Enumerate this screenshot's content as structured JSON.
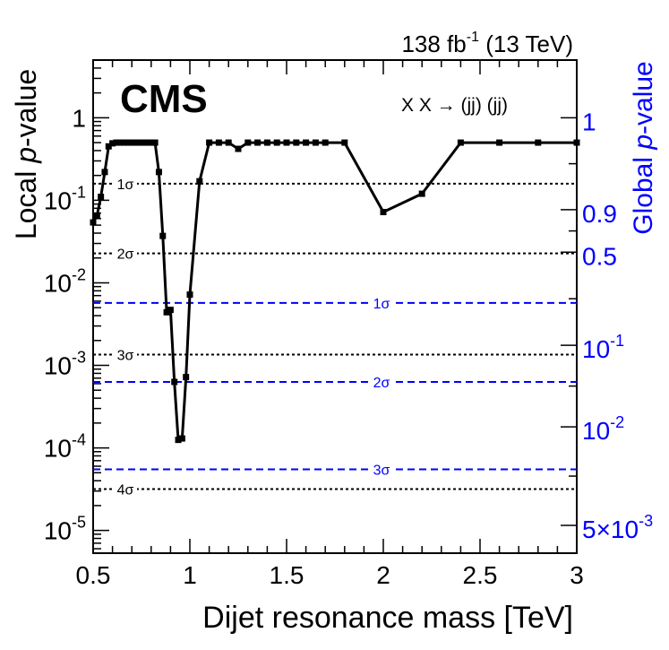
{
  "chart_data": {
    "type": "line",
    "title": "",
    "lumi_label": {
      "value": "138 fb",
      "sup": "-1",
      "energy": " (13 TeV)"
    },
    "experiment": "CMS",
    "process": "X X → (jj) (jj)",
    "xlabel": "Dijet resonance mass [TeV]",
    "ylabel": {
      "plain": "Local ",
      "italic": "p",
      "rest": "-value"
    },
    "ylabel_right": {
      "plain": "Global ",
      "italic": "p",
      "rest": "-value"
    },
    "xlim": [
      0.5,
      3.0
    ],
    "ylim": [
      5.3e-06,
      5.0
    ],
    "y_scale": "log",
    "x_ticks": [
      "0.5",
      "1",
      "1.5",
      "2",
      "2.5",
      "3"
    ],
    "y_ticks": [
      {
        "base": "10",
        "exp": "-5"
      },
      {
        "base": "10",
        "exp": "-4"
      },
      {
        "base": "10",
        "exp": "-3"
      },
      {
        "base": "10",
        "exp": "-2"
      },
      {
        "base": "10",
        "exp": "-1"
      },
      {
        "base": "1",
        "exp": ""
      }
    ],
    "right_ticks": [
      {
        "text": "1",
        "exp": "",
        "local_p": 1.0
      },
      {
        "text": "0.9",
        "exp": "",
        "local_p": 0.077
      },
      {
        "text": "0.5",
        "exp": "",
        "local_p": 0.0235
      },
      {
        "text": "10",
        "exp": "-1",
        "local_p": 0.00175
      },
      {
        "text": "10",
        "exp": "-2",
        "local_p": 0.00018
      },
      {
        "text": "5×10",
        "exp": "-3",
        "local_p": 1.15e-05
      }
    ],
    "local_sigma_lines": [
      {
        "label": "1σ",
        "p": 0.1587
      },
      {
        "label": "2σ",
        "p": 0.02275
      },
      {
        "label": "3σ",
        "p": 0.00135
      },
      {
        "label": "4σ",
        "p": 3.17e-05
      }
    ],
    "global_sigma_lines": [
      {
        "label": "1σ",
        "p": 0.0057
      },
      {
        "label": "2σ",
        "p": 0.00063
      },
      {
        "label": "3σ",
        "p": 5.5e-05
      }
    ],
    "series": [
      {
        "name": "Local p-value",
        "color": "#000000",
        "x": [
          0.5,
          0.52,
          0.54,
          0.56,
          0.58,
          0.6,
          0.62,
          0.64,
          0.66,
          0.68,
          0.7,
          0.72,
          0.74,
          0.76,
          0.78,
          0.8,
          0.82,
          0.84,
          0.86,
          0.88,
          0.9,
          0.92,
          0.94,
          0.96,
          0.98,
          1.0,
          1.05,
          1.1,
          1.15,
          1.2,
          1.25,
          1.3,
          1.35,
          1.4,
          1.45,
          1.5,
          1.55,
          1.6,
          1.65,
          1.7,
          1.8,
          2.0,
          2.2,
          2.4,
          2.6,
          2.8,
          3.0
        ],
        "values": [
          0.054,
          0.065,
          0.11,
          0.22,
          0.45,
          0.49,
          0.5,
          0.5,
          0.5,
          0.5,
          0.5,
          0.5,
          0.5,
          0.5,
          0.5,
          0.5,
          0.5,
          0.22,
          0.037,
          0.0044,
          0.0047,
          0.00063,
          0.000125,
          0.00013,
          0.00072,
          0.0072,
          0.17,
          0.5,
          0.5,
          0.5,
          0.42,
          0.5,
          0.5,
          0.5,
          0.5,
          0.5,
          0.5,
          0.5,
          0.5,
          0.5,
          0.5,
          0.072,
          0.12,
          0.5,
          0.5,
          0.5,
          0.5
        ]
      }
    ],
    "colors": {
      "main": "#000000",
      "global": "#0000ff"
    }
  }
}
